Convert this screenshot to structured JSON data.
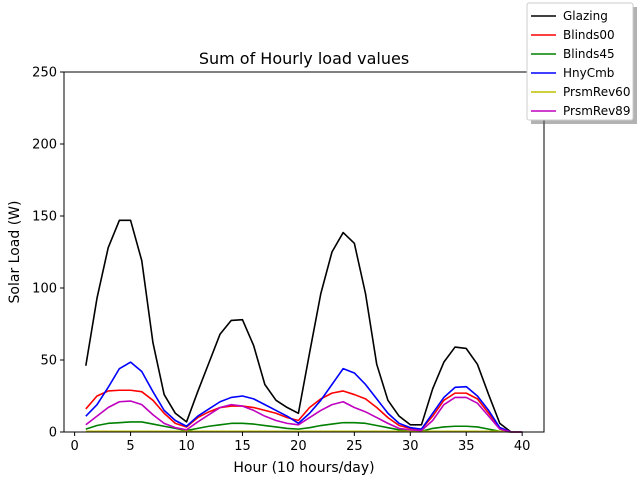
{
  "chart_data": {
    "type": "line",
    "title": "Sum of Hourly load values",
    "xlabel": "Hour (10 hours/day)",
    "ylabel": "Solar Load (W)",
    "xlim": [
      -0.95,
      41.95
    ],
    "ylim": [
      0,
      250
    ],
    "xticks": [
      0,
      5,
      10,
      15,
      20,
      25,
      30,
      35,
      40
    ],
    "yticks": [
      0,
      50,
      100,
      150,
      200,
      250
    ],
    "grid": false,
    "legend_position": "top-right",
    "x": [
      1,
      2,
      3,
      4,
      5,
      6,
      7,
      8,
      9,
      10,
      11,
      12,
      13,
      14,
      15,
      16,
      17,
      18,
      19,
      20,
      21,
      22,
      23,
      24,
      25,
      26,
      27,
      28,
      29,
      30,
      31,
      32,
      33,
      34,
      35,
      36,
      37,
      38,
      39,
      40
    ],
    "series": [
      {
        "name": "Glazing",
        "color": "#000000",
        "values": [
          46,
          93,
          128,
          147,
          147,
          119,
          62,
          26,
          13,
          7,
          28,
          48,
          68,
          77.5,
          78,
          60,
          33,
          22,
          17,
          13,
          55,
          96,
          125,
          138.5,
          131,
          96,
          47,
          22,
          11,
          5,
          5,
          30,
          48.5,
          59,
          58,
          47,
          26,
          6,
          0,
          0
        ]
      },
      {
        "name": "Blinds00",
        "color": "#ff0000",
        "values": [
          16,
          25,
          28.5,
          29,
          29,
          28,
          22,
          13,
          6,
          3.5,
          10,
          14,
          17,
          18,
          18,
          17,
          15,
          13,
          10,
          8,
          17,
          23,
          27,
          28.5,
          26,
          23,
          17,
          10,
          4.5,
          2.5,
          2,
          11,
          22,
          27,
          27,
          23,
          13,
          3,
          0,
          0
        ]
      },
      {
        "name": "Blinds45",
        "color": "#008000",
        "values": [
          2,
          4.5,
          6,
          6.5,
          7,
          7,
          5.5,
          4,
          2.5,
          1,
          2.5,
          4,
          5,
          6,
          6,
          5.5,
          4.5,
          3.5,
          2.5,
          2,
          3,
          4.5,
          5.5,
          6.5,
          6.5,
          6,
          4.5,
          3,
          1.5,
          0.5,
          0.5,
          2.5,
          3.5,
          4,
          4,
          3.5,
          2,
          0.5,
          0,
          0
        ]
      },
      {
        "name": "HnyCmb",
        "color": "#0000ff",
        "values": [
          11,
          19,
          31,
          44,
          48.5,
          42,
          28,
          15,
          8,
          4,
          11,
          16,
          21,
          24,
          25,
          23,
          19,
          15,
          11,
          6,
          13,
          22,
          33,
          44,
          41,
          33,
          23,
          13,
          6,
          3,
          2,
          13,
          24,
          31,
          31.5,
          25,
          15,
          3,
          0,
          0
        ]
      },
      {
        "name": "PrsmRev60",
        "color": "#bfbf00",
        "values": [
          0.5,
          0.5,
          0.5,
          0.5,
          0.5,
          0.5,
          0.5,
          0.5,
          0.5,
          0.5,
          0.5,
          0.5,
          0.5,
          0.5,
          0.5,
          0.5,
          0.5,
          0.5,
          0.5,
          0.5,
          0.5,
          0.5,
          0.5,
          0.5,
          0.5,
          0.5,
          0.5,
          0.5,
          0.5,
          0.5,
          0.5,
          0.5,
          0.5,
          0.5,
          0.5,
          0.5,
          0.5,
          0.5,
          0,
          0
        ]
      },
      {
        "name": "PrsmRev89",
        "color": "#bf00bf",
        "values": [
          5,
          11,
          17,
          21,
          21.5,
          19,
          12,
          6,
          3,
          1.5,
          7,
          12,
          17,
          19,
          18,
          15,
          11,
          8,
          6,
          5,
          10,
          15,
          19,
          21,
          17,
          14,
          10,
          6,
          2.5,
          1.5,
          1,
          8,
          19,
          24,
          24,
          20,
          11,
          2,
          0,
          0
        ]
      }
    ]
  }
}
